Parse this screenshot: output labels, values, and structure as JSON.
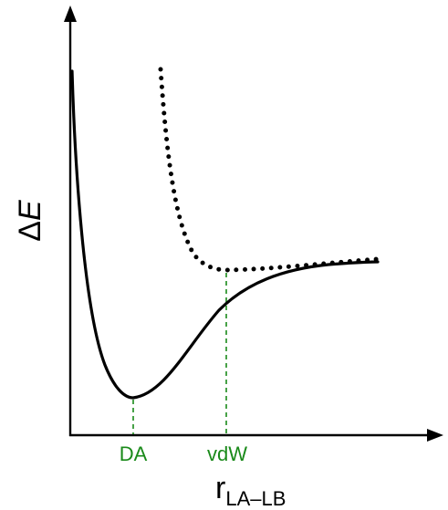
{
  "diagram": {
    "y_axis_label": {
      "delta": "Δ",
      "symbol": "E"
    },
    "x_axis_label": {
      "base": "r",
      "subscript": "LA–LB"
    },
    "markers": [
      {
        "id": "da",
        "label": "DA"
      },
      {
        "id": "vdw",
        "label": "vdW"
      }
    ],
    "curves": [
      {
        "id": "donor-acceptor-curve",
        "style": "solid"
      },
      {
        "id": "van-der-waals-curve",
        "style": "dotted"
      }
    ],
    "colors": {
      "axes": "#000000",
      "curves": "#000000",
      "markers": "#1a8a1a"
    }
  }
}
